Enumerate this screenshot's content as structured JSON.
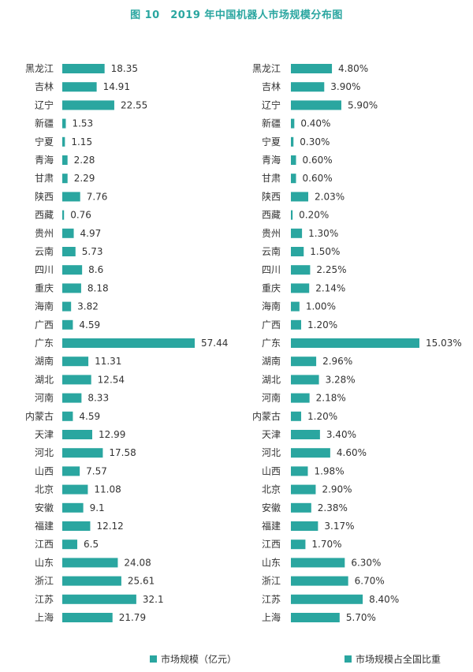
{
  "title": "图 10　2019 年中国机器人市场规模分布图",
  "colors": {
    "bar": "#2aa6a0",
    "text": "#333333"
  },
  "chart_data": [
    {
      "type": "bar",
      "orientation": "horizontal",
      "legend": "市场规模（亿元）",
      "categories": [
        "黑龙江",
        "吉林",
        "辽宁",
        "新疆",
        "宁夏",
        "青海",
        "甘肃",
        "陕西",
        "西藏",
        "贵州",
        "云南",
        "四川",
        "重庆",
        "海南",
        "广西",
        "广东",
        "湖南",
        "湖北",
        "河南",
        "内蒙古",
        "天津",
        "河北",
        "山西",
        "北京",
        "安徽",
        "福建",
        "江西",
        "山东",
        "浙江",
        "江苏",
        "上海"
      ],
      "values": [
        18.35,
        14.91,
        22.55,
        1.53,
        1.15,
        2.28,
        2.29,
        7.76,
        0.76,
        4.97,
        5.73,
        8.6,
        8.18,
        3.82,
        4.59,
        57.44,
        11.31,
        12.54,
        8.33,
        4.59,
        12.99,
        17.58,
        7.57,
        11.08,
        9.1,
        12.12,
        6.5,
        24.08,
        25.61,
        32.1,
        21.79
      ],
      "value_labels": [
        "18.35",
        "14.91",
        "22.55",
        "1.53",
        "1.15",
        "2.28",
        "2.29",
        "7.76",
        "0.76",
        "4.97",
        "5.73",
        "8.6",
        "8.18",
        "3.82",
        "4.59",
        "57.44",
        "11.31",
        "12.54",
        "8.33",
        "4.59",
        "12.99",
        "17.58",
        "7.57",
        "11.08",
        "9.1",
        "12.12",
        "6.5",
        "24.08",
        "25.61",
        "32.1",
        "21.79"
      ]
    },
    {
      "type": "bar",
      "orientation": "horizontal",
      "legend": "市场规模占全国比重",
      "categories": [
        "黑龙江",
        "吉林",
        "辽宁",
        "新疆",
        "宁夏",
        "青海",
        "甘肃",
        "陕西",
        "西藏",
        "贵州",
        "云南",
        "四川",
        "重庆",
        "海南",
        "广西",
        "广东",
        "湖南",
        "湖北",
        "河南",
        "内蒙古",
        "天津",
        "河北",
        "山西",
        "北京",
        "安徽",
        "福建",
        "江西",
        "山东",
        "浙江",
        "江苏",
        "上海"
      ],
      "values": [
        4.8,
        3.9,
        5.9,
        0.4,
        0.3,
        0.6,
        0.6,
        2.03,
        0.2,
        1.3,
        1.5,
        2.25,
        2.14,
        1.0,
        1.2,
        15.03,
        2.96,
        3.28,
        2.18,
        1.2,
        3.4,
        4.6,
        1.98,
        2.9,
        2.38,
        3.17,
        1.7,
        6.3,
        6.7,
        8.4,
        5.7
      ],
      "value_labels": [
        "4.80%",
        "3.90%",
        "5.90%",
        "0.40%",
        "0.30%",
        "0.60%",
        "0.60%",
        "2.03%",
        "0.20%",
        "1.30%",
        "1.50%",
        "2.25%",
        "2.14%",
        "1.00%",
        "1.20%",
        "15.03%",
        "2.96%",
        "3.28%",
        "2.18%",
        "1.20%",
        "3.40%",
        "4.60%",
        "1.98%",
        "2.90%",
        "2.38%",
        "3.17%",
        "1.70%",
        "6.30%",
        "6.70%",
        "8.40%",
        "5.70%"
      ]
    }
  ]
}
